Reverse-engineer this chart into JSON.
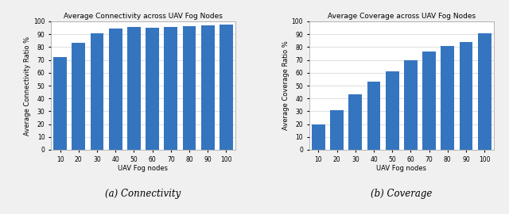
{
  "connectivity": {
    "title": "Average Connectivity across UAV Fog Nodes",
    "xlabel": "UAV Fog nodes",
    "ylabel": "Average Connectivity Ratio %",
    "categories": [
      10,
      20,
      30,
      40,
      50,
      60,
      70,
      80,
      90,
      100
    ],
    "values": [
      72,
      83.5,
      91,
      94.5,
      95.5,
      95.2,
      95.7,
      96.2,
      97,
      97.5
    ],
    "ylim": [
      0,
      100
    ],
    "yticks": [
      0,
      10,
      20,
      30,
      40,
      50,
      60,
      70,
      80,
      90,
      100
    ],
    "bar_color": "#3575c0",
    "subtitle": "(a) Connectivity"
  },
  "coverage": {
    "title": "Average Coverage across UAV Fog Nodes",
    "xlabel": "UAV Fog nodes",
    "ylabel": "Average Coverage Ratio %",
    "categories": [
      10,
      20,
      30,
      40,
      50,
      60,
      70,
      80,
      90,
      100
    ],
    "values": [
      19.5,
      31,
      43.5,
      53,
      61,
      69.5,
      76.5,
      81,
      84,
      90.5
    ],
    "ylim": [
      0,
      100
    ],
    "yticks": [
      0,
      10,
      20,
      30,
      40,
      50,
      60,
      70,
      80,
      90,
      100
    ],
    "bar_color": "#3575c0",
    "subtitle": "(b) Coverage"
  },
  "bg_color": "#ffffff",
  "fig_bg_color": "#f0f0f0",
  "grid_color": "#d0d0d0",
  "spine_color": "#aaaaaa",
  "title_fontsize": 6.5,
  "label_fontsize": 6.0,
  "tick_fontsize": 5.5,
  "subtitle_fontsize": 8.5
}
